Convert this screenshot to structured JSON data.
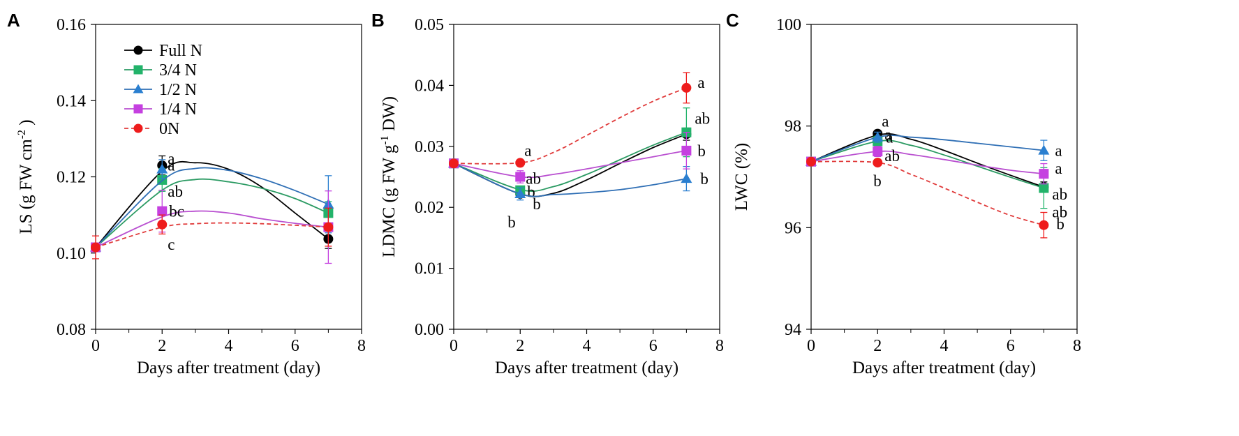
{
  "chart_data": [
    {
      "type": "scatter",
      "panel_label": "A",
      "xlabel": "Days after treatment (day)",
      "ylabel_main": "LS (g FW cm",
      "ylabel_sup": "-2",
      "ylabel_tail": " )",
      "xlim": [
        0,
        8
      ],
      "ylim": [
        0.08,
        0.16
      ],
      "xticks": [
        0,
        2,
        4,
        6,
        8
      ],
      "xtick_labels": [
        "0",
        "2",
        "4",
        "6",
        "8"
      ],
      "yticks": [
        0.08,
        0.1,
        0.12,
        0.14,
        0.16
      ],
      "ytick_labels": [
        "0.08",
        "0.10",
        "0.12",
        "0.14",
        "0.16"
      ],
      "show_legend": true,
      "series": [
        {
          "name": "Full N",
          "color": "#000000",
          "marker_color": "#000000",
          "marker": "circle",
          "dashed": false,
          "x": [
            0,
            2,
            7
          ],
          "y": [
            0.1015,
            0.123,
            0.1037
          ],
          "err": [
            0.001,
            0.0025,
            0.0025
          ],
          "curve": [
            0.1015,
            0.1215,
            0.1237,
            0.122,
            0.1173,
            0.1105,
            0.1037
          ],
          "labels": [
            null,
            "a",
            null
          ]
        },
        {
          "name": "3/4 N",
          "color": "#2a9a62",
          "marker_color": "#22b36a",
          "marker": "square",
          "dashed": false,
          "x": [
            0,
            2,
            7
          ],
          "y": [
            0.1015,
            0.1192,
            0.1105
          ],
          "err": [
            0.001,
            0.003,
            0.003
          ],
          "curve": [
            0.1015,
            0.1165,
            0.1193,
            0.1187,
            0.117,
            0.1143,
            0.1105
          ],
          "labels": [
            null,
            "ab",
            null
          ]
        },
        {
          "name": "1/2 N",
          "color": "#2f6fb5",
          "marker_color": "#2a7fd0",
          "marker": "triangle",
          "dashed": false,
          "x": [
            0,
            2,
            7
          ],
          "y": [
            0.1015,
            0.122,
            0.1128
          ],
          "err": [
            0.001,
            0.0025,
            0.0075
          ],
          "curve": [
            0.1015,
            0.119,
            0.1222,
            0.1217,
            0.1195,
            0.1164,
            0.1128
          ],
          "labels": [
            null,
            "a",
            null
          ]
        },
        {
          "name": "1/4 N",
          "color": "#b94fd0",
          "marker_color": "#c540e0",
          "marker": "square",
          "dashed": false,
          "x": [
            0,
            2,
            7
          ],
          "y": [
            0.1015,
            0.111,
            0.1068
          ],
          "err": [
            0.001,
            0.0055,
            0.0095
          ],
          "curve": [
            0.1015,
            0.1095,
            0.111,
            0.1105,
            0.109,
            0.1078,
            0.1068
          ],
          "labels": [
            null,
            "bc",
            null
          ]
        },
        {
          "name": "0N",
          "color": "#e03a3a",
          "marker_color": "#ee1c1c",
          "marker": "circle",
          "dashed": true,
          "x": [
            0,
            2,
            7
          ],
          "y": [
            0.1015,
            0.1075,
            0.1068
          ],
          "err": [
            0.003,
            0.0025,
            0.005
          ],
          "curve": [
            0.1015,
            0.1068,
            0.1077,
            0.1079,
            0.1077,
            0.1073,
            0.1068
          ],
          "labels": [
            null,
            "c",
            null
          ]
        }
      ]
    },
    {
      "type": "scatter",
      "panel_label": "B",
      "xlabel": "Days after treatment (day)",
      "ylabel_main": "LDMC (g FW g",
      "ylabel_sup": "-1",
      "ylabel_tail": " DW)",
      "xlim": [
        0,
        8
      ],
      "ylim": [
        0.0,
        0.05
      ],
      "xticks": [
        0,
        2,
        4,
        6,
        8
      ],
      "xtick_labels": [
        "0",
        "2",
        "4",
        "6",
        "8"
      ],
      "yticks": [
        0.0,
        0.01,
        0.02,
        0.03,
        0.04,
        0.05
      ],
      "ytick_labels": [
        "0.00",
        "0.01",
        "0.02",
        "0.03",
        "0.04",
        "0.05"
      ],
      "show_legend": false,
      "series": [
        {
          "name": "Full N",
          "color": "#000000",
          "marker_color": "#000000",
          "marker": "circle",
          "dashed": false,
          "x": [
            0,
            2,
            7
          ],
          "y": [
            0.0272,
            0.0222,
            0.032
          ],
          "err": [
            0.0005,
            0.0005,
            0.001
          ],
          "curve": [
            0.0272,
            0.0222,
            0.0223,
            0.0245,
            0.0272,
            0.0298,
            0.032
          ],
          "labels": [
            null,
            "b",
            null
          ]
        },
        {
          "name": "3/4 N",
          "color": "#2a9a62",
          "marker_color": "#22b36a",
          "marker": "square",
          "dashed": false,
          "x": [
            0,
            2,
            7
          ],
          "y": [
            0.0272,
            0.0228,
            0.0323
          ],
          "err": [
            0.0005,
            0.0005,
            0.004
          ],
          "curve": [
            0.0272,
            0.0229,
            0.0234,
            0.0254,
            0.0278,
            0.0302,
            0.0323
          ],
          "labels": [
            null,
            "b",
            "ab"
          ]
        },
        {
          "name": "1/2 N",
          "color": "#2f6fb5",
          "marker_color": "#2a7fd0",
          "marker": "triangle",
          "dashed": false,
          "x": [
            0,
            2,
            7
          ],
          "y": [
            0.0272,
            0.0222,
            0.0247
          ],
          "err": [
            0.0005,
            0.001,
            0.002
          ],
          "curve": [
            0.0272,
            0.0222,
            0.0221,
            0.0224,
            0.0229,
            0.0237,
            0.0247
          ],
          "labels": [
            null,
            "b",
            "b"
          ]
        },
        {
          "name": "1/4 N",
          "color": "#b94fd0",
          "marker_color": "#c540e0",
          "marker": "square",
          "dashed": false,
          "x": [
            0,
            2,
            7
          ],
          "y": [
            0.0272,
            0.025,
            0.0293
          ],
          "err": [
            0.0005,
            0.001,
            0.003
          ],
          "curve": [
            0.0272,
            0.025,
            0.0254,
            0.0263,
            0.0273,
            0.0283,
            0.0293
          ],
          "labels": [
            null,
            "ab",
            "b"
          ]
        },
        {
          "name": "0N",
          "color": "#e03a3a",
          "marker_color": "#ee1c1c",
          "marker": "circle",
          "dashed": true,
          "x": [
            0,
            2,
            7
          ],
          "y": [
            0.0272,
            0.0273,
            0.0396
          ],
          "err": [
            0.0005,
            0.0005,
            0.0025
          ],
          "curve": [
            0.0272,
            0.0273,
            0.029,
            0.0318,
            0.0347,
            0.0374,
            0.0396
          ],
          "labels": [
            null,
            "a",
            "a"
          ]
        }
      ]
    },
    {
      "type": "scatter",
      "panel_label": "C",
      "xlabel": "Days after treatment (day)",
      "ylabel_main": "LWC (%)",
      "ylabel_sup": "",
      "ylabel_tail": "",
      "xlim": [
        0,
        8
      ],
      "ylim": [
        94,
        100
      ],
      "xticks": [
        0,
        2,
        4,
        6,
        8
      ],
      "xtick_labels": [
        "0",
        "2",
        "4",
        "6",
        "8"
      ],
      "yticks": [
        94,
        96,
        98,
        100
      ],
      "ytick_labels": [
        "94",
        "96",
        "98",
        "100"
      ],
      "show_legend": false,
      "series": [
        {
          "name": "Full N",
          "color": "#000000",
          "marker_color": "#000000",
          "marker": "circle",
          "dashed": false,
          "x": [
            0,
            2,
            7
          ],
          "y": [
            97.3,
            97.85,
            96.8
          ],
          "err": [
            0.05,
            0.05,
            0.1
          ],
          "curve": [
            97.3,
            97.82,
            97.74,
            97.52,
            97.27,
            97.03,
            96.8
          ],
          "labels": [
            null,
            "a",
            "ab"
          ]
        },
        {
          "name": "3/4 N",
          "color": "#2a9a62",
          "marker_color": "#22b36a",
          "marker": "square",
          "dashed": false,
          "x": [
            0,
            2,
            7
          ],
          "y": [
            97.3,
            97.7,
            96.78
          ],
          "err": [
            0.05,
            0.1,
            0.4
          ],
          "curve": [
            97.3,
            97.7,
            97.62,
            97.43,
            97.21,
            96.99,
            96.78
          ],
          "labels": [
            null,
            "a",
            "ab"
          ]
        },
        {
          "name": "1/2 N",
          "color": "#2f6fb5",
          "marker_color": "#2a7fd0",
          "marker": "triangle",
          "dashed": false,
          "x": [
            0,
            2,
            7
          ],
          "y": [
            97.3,
            97.78,
            97.52
          ],
          "err": [
            0.05,
            0.1,
            0.2
          ],
          "curve": [
            97.3,
            97.78,
            97.78,
            97.73,
            97.66,
            97.59,
            97.52
          ],
          "labels": [
            null,
            "a",
            "a"
          ]
        },
        {
          "name": "1/4 N",
          "color": "#b94fd0",
          "marker_color": "#c540e0",
          "marker": "square",
          "dashed": false,
          "x": [
            0,
            2,
            7
          ],
          "y": [
            97.3,
            97.5,
            97.06
          ],
          "err": [
            0.05,
            0.1,
            0.2
          ],
          "curve": [
            97.3,
            97.5,
            97.44,
            97.34,
            97.23,
            97.13,
            97.06
          ],
          "labels": [
            null,
            "ab",
            "a"
          ]
        },
        {
          "name": "0N",
          "color": "#e03a3a",
          "marker_color": "#ee1c1c",
          "marker": "circle",
          "dashed": true,
          "x": [
            0,
            2,
            7
          ],
          "y": [
            97.3,
            97.28,
            96.05
          ],
          "err": [
            0.05,
            0.05,
            0.25
          ],
          "curve": [
            97.3,
            97.28,
            97.05,
            96.78,
            96.5,
            96.24,
            96.05
          ],
          "labels": [
            null,
            "b",
            "b"
          ]
        }
      ]
    }
  ]
}
